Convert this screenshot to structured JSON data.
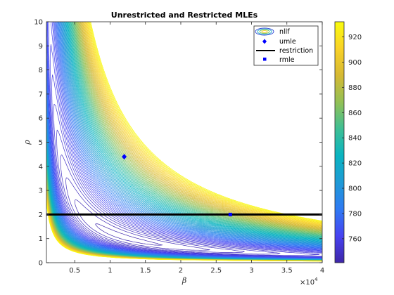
{
  "chart_data": {
    "type": "contour",
    "title": "Unrestricted and Restricted MLEs",
    "xlabel": "β",
    "ylabel": "ρ",
    "x_exponent_label": "×10",
    "x_exponent_power": "4",
    "xlim": [
      1000,
      40000
    ],
    "ylim": [
      0,
      10
    ],
    "x_ticks": [
      5000,
      10000,
      15000,
      20000,
      25000,
      30000,
      35000,
      40000
    ],
    "x_tick_labels": [
      "0.5",
      "1",
      "1.5",
      "2",
      "2.5",
      "3",
      "3.5",
      "4"
    ],
    "y_ticks": [
      0,
      1,
      2,
      3,
      4,
      5,
      6,
      7,
      8,
      9,
      10
    ],
    "y_tick_labels": [
      "0",
      "1",
      "2",
      "3",
      "4",
      "5",
      "6",
      "7",
      "8",
      "9",
      "10"
    ],
    "colorbar": {
      "min": 741,
      "max": 932,
      "ticks": [
        760,
        780,
        800,
        820,
        840,
        860,
        880,
        900,
        920
      ],
      "tick_labels": [
        "760",
        "780",
        "800",
        "820",
        "840",
        "860",
        "880",
        "900",
        "920"
      ],
      "colormap": [
        "#3e26a8",
        "#4743f1",
        "#2f7af3",
        "#1f9ad6",
        "#0ab4c1",
        "#3ebf94",
        "#93c055",
        "#d6b933",
        "#f9d228",
        "#f9fb0e"
      ]
    },
    "contour_levels": {
      "count": 80,
      "min": 741,
      "max": 932
    },
    "series": [
      {
        "name": "nllf",
        "kind": "contour"
      },
      {
        "name": "umle",
        "kind": "point",
        "x": 12000,
        "y": 4.4,
        "color": "#0000ff",
        "marker": "diamond"
      },
      {
        "name": "restriction",
        "kind": "line",
        "y": 2,
        "color": "#000000"
      },
      {
        "name": "rmle",
        "kind": "point",
        "x": 27000,
        "y": 2,
        "color": "#0000ff",
        "marker": "square"
      }
    ],
    "legend_position": "top-right",
    "grid": false
  }
}
